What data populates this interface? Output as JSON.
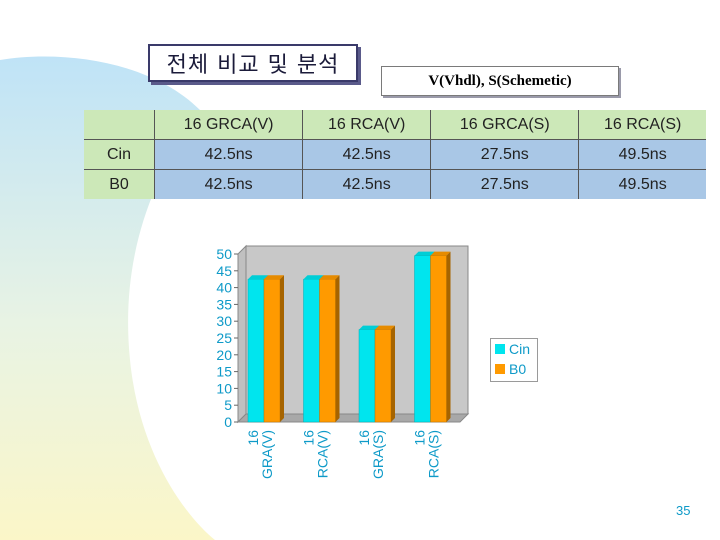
{
  "slide": {
    "title": "전체 비교 및 분석",
    "subtitle": "V(Vhdl), S(Schemetic)",
    "page_number": "35"
  },
  "table": {
    "headers": [
      "",
      "16 GRCA(V)",
      "16 RCA(V)",
      "16 GRCA(S)",
      "16 RCA(S)"
    ],
    "rows": [
      {
        "label": "Cin",
        "cells": [
          "42.5ns",
          "42.5ns",
          "27.5ns",
          "49.5ns"
        ]
      },
      {
        "label": "B0",
        "cells": [
          "42.5ns",
          "42.5ns",
          "27.5ns",
          "49.5ns"
        ]
      }
    ]
  },
  "chart_data": {
    "type": "bar",
    "categories": [
      "16 GRA(V)",
      "16 RCA(V)",
      "16 GRA(S)",
      "16 RCA(S)"
    ],
    "series": [
      {
        "name": "Cin",
        "values": [
          42.5,
          42.5,
          27.5,
          49.5
        ],
        "color": "#00e5ee"
      },
      {
        "name": "B0",
        "values": [
          42.5,
          42.5,
          27.5,
          49.5
        ],
        "color": "#ff9a00"
      }
    ],
    "yticks": [
      0,
      5,
      10,
      15,
      20,
      25,
      30,
      35,
      40,
      45,
      50
    ],
    "ylim": [
      0,
      50
    ],
    "grid": false,
    "legend": "right",
    "style": "3d"
  },
  "colors": {
    "blob": "#c8e6f5",
    "blob_light": "#fbf6c8",
    "tick_text": "#0e9ac8",
    "table_header": "#cce8b8",
    "table_body": "#a9c7e6"
  }
}
